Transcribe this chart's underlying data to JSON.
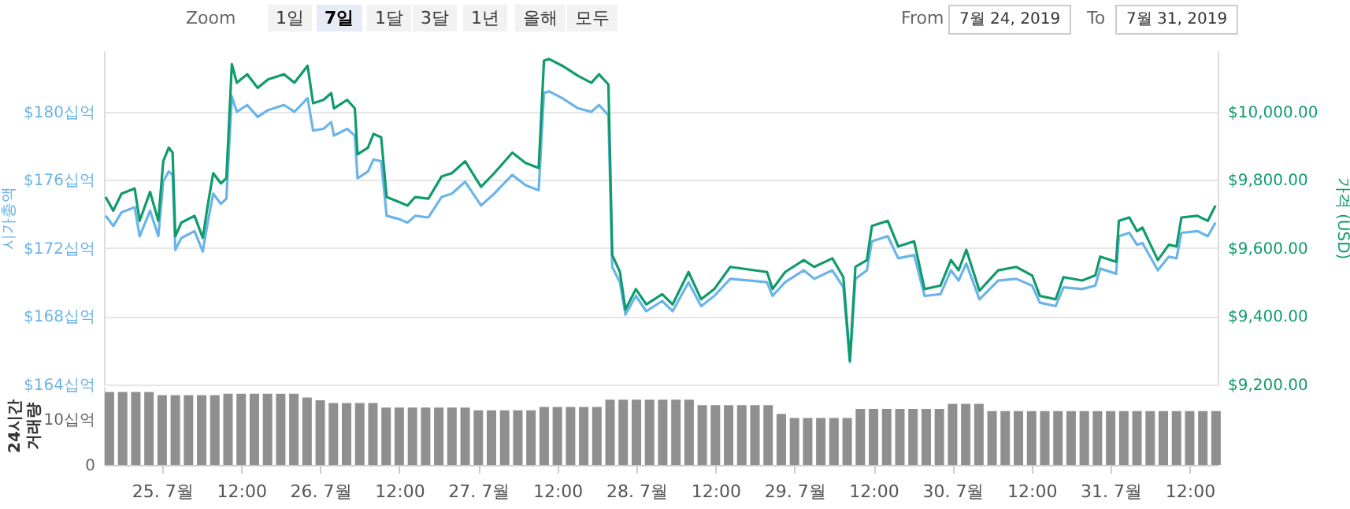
{
  "chart_data": [
    {
      "type": "line",
      "xlim": [
        "2019-07-24T15:10",
        "2019-07-31T16:15"
      ],
      "ylim": [
        164,
        183.6
      ],
      "yticks": [
        {
          "value": 164,
          "label": "$164십억"
        },
        {
          "value": 168,
          "label": "$168십억"
        },
        {
          "value": 172,
          "label": "$172십억"
        },
        {
          "value": 176,
          "label": "$176십억"
        },
        {
          "value": 180,
          "label": "$180십억"
        }
      ],
      "y2lim": [
        9200,
        10180
      ],
      "y2ticks": [
        {
          "value": 9200,
          "label": "$9,200.00"
        },
        {
          "value": 9400,
          "label": "$9,400.00"
        },
        {
          "value": 9600,
          "label": "$9,600.00"
        },
        {
          "value": 9800,
          "label": "$9,800.00"
        },
        {
          "value": 10000,
          "label": "$10,000.00"
        }
      ],
      "ylabel": "시가총액",
      "y2label": "가격 (USD)",
      "grid": "y",
      "tick_labels": "y",
      "annotations": [
        "Zoom",
        "1일",
        "7일",
        "1달",
        "3달",
        "1년",
        "올해",
        "모두",
        "From",
        "7월 24, 2019",
        "To",
        "7월 31, 2019"
      ],
      "x": [
        "2019-07-24T15:25",
        "2019-07-24T16:35",
        "2019-07-24T17:50",
        "2019-07-24T19:50",
        "2019-07-24T20:35",
        "2019-07-24T22:10",
        "2019-07-24T23:25",
        "2019-07-25T00:10",
        "2019-07-25T01:00",
        "2019-07-25T01:35",
        "2019-07-25T02:00",
        "2019-07-25T02:55",
        "2019-07-25T04:55",
        "2019-07-25T06:10",
        "2019-07-25T06:55",
        "2019-07-25T07:45",
        "2019-07-25T08:55",
        "2019-07-25T09:45",
        "2019-07-25T10:35",
        "2019-07-25T11:20",
        "2019-07-25T12:55",
        "2019-07-25T14:30",
        "2019-07-25T16:05",
        "2019-07-25T18:30",
        "2019-07-25T20:05",
        "2019-07-25T22:05",
        "2019-07-25T22:55",
        "2019-07-26T00:30",
        "2019-07-26T01:40",
        "2019-07-26T02:05",
        "2019-07-26T04:05",
        "2019-07-26T05:15",
        "2019-07-26T05:40",
        "2019-07-26T07:15",
        "2019-07-26T08:05",
        "2019-07-26T09:15",
        "2019-07-26T10:05",
        "2019-07-26T12:00",
        "2019-07-26T13:15",
        "2019-07-26T14:25",
        "2019-07-26T16:25",
        "2019-07-26T18:25",
        "2019-07-26T20:00",
        "2019-07-26T22:00",
        "2019-07-27T00:25",
        "2019-07-27T02:25",
        "2019-07-27T05:10",
        "2019-07-27T07:10",
        "2019-07-27T09:10",
        "2019-07-27T09:58",
        "2019-07-27T10:45",
        "2019-07-27T12:45",
        "2019-07-27T15:10",
        "2019-07-27T17:10",
        "2019-07-27T18:20",
        "2019-07-27T19:45",
        "2019-07-27T20:20",
        "2019-07-27T21:30",
        "2019-07-27T22:20",
        "2019-07-27T23:55",
        "2019-07-28T01:30",
        "2019-07-28T03:55",
        "2019-07-28T05:30",
        "2019-07-28T07:55",
        "2019-07-28T09:50",
        "2019-07-28T11:50",
        "2019-07-28T14:15",
        "2019-07-28T19:50",
        "2019-07-28T20:40",
        "2019-07-28T22:35",
        "2019-07-29T01:25",
        "2019-07-29T03:00",
        "2019-07-29T05:45",
        "2019-07-29T07:25",
        "2019-07-29T08:25",
        "2019-07-29T09:15",
        "2019-07-29T11:00",
        "2019-07-29T11:45",
        "2019-07-29T14:10",
        "2019-07-29T15:45",
        "2019-07-29T18:10",
        "2019-07-29T19:45",
        "2019-07-29T22:10",
        "2019-07-29T23:45",
        "2019-07-30T00:55",
        "2019-07-30T02:05",
        "2019-07-30T04:05",
        "2019-07-30T06:55",
        "2019-07-30T09:40",
        "2019-07-30T12:05",
        "2019-07-30T13:15",
        "2019-07-30T15:40",
        "2019-07-30T16:50",
        "2019-07-30T19:40",
        "2019-07-30T21:40",
        "2019-07-30T22:25",
        "2019-07-31T00:50",
        "2019-07-31T01:15",
        "2019-07-31T02:50",
        "2019-07-31T04:00",
        "2019-07-31T04:50",
        "2019-07-31T07:10",
        "2019-07-31T08:50",
        "2019-07-31T10:00",
        "2019-07-31T10:45",
        "2019-07-31T13:10",
        "2019-07-31T14:45",
        "2019-07-31T15:55"
      ],
      "series": [
        {
          "color": "#6ab4ea",
          "values": [
            173.9,
            173.3,
            174.1,
            174.4,
            172.7,
            174.2,
            172.7,
            175.9,
            176.5,
            176.3,
            171.9,
            172.6,
            173.0,
            171.8,
            173.5,
            175.2,
            174.6,
            174.9,
            180.9,
            180.0,
            180.4,
            179.7,
            180.1,
            180.4,
            180.0,
            180.8,
            178.9,
            179.0,
            179.4,
            178.6,
            179.0,
            178.6,
            176.1,
            176.5,
            177.2,
            177.1,
            173.9,
            173.7,
            173.5,
            173.9,
            173.8,
            175.0,
            175.2,
            175.9,
            174.5,
            175.2,
            176.3,
            175.7,
            175.4,
            181.1,
            181.2,
            180.8,
            180.2,
            180.0,
            180.4,
            179.8,
            170.9,
            170.0,
            168.1,
            169.2,
            168.3,
            168.9,
            168.3,
            170.0,
            168.6,
            169.2,
            170.2,
            170.0,
            169.2,
            170.0,
            170.7,
            170.2,
            170.7,
            169.7,
            165.3,
            170.2,
            170.7,
            172.4,
            172.7,
            171.4,
            171.6,
            169.2,
            169.3,
            170.7,
            170.1,
            171.1,
            169.0,
            170.1,
            170.2,
            169.8,
            168.8,
            168.6,
            169.7,
            169.6,
            169.8,
            170.8,
            170.5,
            172.7,
            172.9,
            172.2,
            172.3,
            170.7,
            171.5,
            171.4,
            172.9,
            173.0,
            172.7,
            173.5
          ]
        },
        {
          "color": "#0f9b6c",
          "axis": "y2",
          "values": [
            9750,
            9710,
            9760,
            9775,
            9680,
            9765,
            9680,
            9855,
            9895,
            9880,
            9635,
            9675,
            9695,
            9630,
            9725,
            9820,
            9790,
            9805,
            10140,
            10085,
            10110,
            10070,
            10095,
            10110,
            10085,
            10135,
            10025,
            10035,
            10055,
            10010,
            10035,
            10010,
            9875,
            9895,
            9935,
            9925,
            9750,
            9735,
            9725,
            9750,
            9745,
            9810,
            9820,
            9855,
            9780,
            9820,
            9880,
            9850,
            9835,
            10150,
            10155,
            10135,
            10105,
            10085,
            10110,
            10080,
            9580,
            9530,
            9420,
            9480,
            9435,
            9465,
            9435,
            9530,
            9450,
            9480,
            9545,
            9530,
            9480,
            9530,
            9565,
            9545,
            9570,
            9515,
            9270,
            9545,
            9565,
            9665,
            9680,
            9605,
            9620,
            9480,
            9490,
            9565,
            9535,
            9595,
            9475,
            9535,
            9545,
            9520,
            9460,
            9450,
            9515,
            9505,
            9520,
            9575,
            9560,
            9680,
            9690,
            9650,
            9660,
            9565,
            9610,
            9605,
            9690,
            9695,
            9680,
            9725
          ]
        }
      ]
    },
    {
      "type": "bar",
      "xlim": [
        "2019-07-24T15:10",
        "2019-07-31T16:15"
      ],
      "ylim": [
        0,
        17.3
      ],
      "yticks": [
        0,
        {
          "value": 10,
          "label": "10십억"
        }
      ],
      "ylabel": "24시간\n거래량",
      "color": "#8f8f8f",
      "xticks": [
        {
          "value": "2019-07-25T00:00",
          "label": "25. 7월"
        },
        {
          "value": "2019-07-25T12:00",
          "label": "12:00"
        },
        {
          "value": "2019-07-26T00:00",
          "label": "26. 7월"
        },
        {
          "value": "2019-07-26T12:00",
          "label": "12:00"
        },
        {
          "value": "2019-07-27T00:00",
          "label": "27. 7월"
        },
        {
          "value": "2019-07-27T12:00",
          "label": "12:00"
        },
        {
          "value": "2019-07-28T00:00",
          "label": "28. 7월"
        },
        {
          "value": "2019-07-28T12:00",
          "label": "12:00"
        },
        {
          "value": "2019-07-29T00:00",
          "label": "29. 7월"
        },
        {
          "value": "2019-07-29T12:00",
          "label": "12:00"
        },
        {
          "value": "2019-07-30T00:00",
          "label": "30. 7월"
        },
        {
          "value": "2019-07-30T12:00",
          "label": "12:00"
        },
        {
          "value": "2019-07-31T00:00",
          "label": "31. 7월"
        },
        {
          "value": "2019-07-31T12:00",
          "label": "12:00"
        }
      ],
      "x": [
        "2019-07-24T16:00",
        "2019-07-24T18:00",
        "2019-07-24T20:00",
        "2019-07-24T22:00",
        "2019-07-25T00:00",
        "2019-07-25T02:00",
        "2019-07-25T04:00",
        "2019-07-25T06:00",
        "2019-07-25T08:00",
        "2019-07-25T10:00",
        "2019-07-25T12:00",
        "2019-07-25T14:00",
        "2019-07-25T16:00",
        "2019-07-25T18:00",
        "2019-07-25T20:00",
        "2019-07-25T22:00",
        "2019-07-26T00:00",
        "2019-07-26T02:00",
        "2019-07-26T04:00",
        "2019-07-26T06:00",
        "2019-07-26T08:00",
        "2019-07-26T10:00",
        "2019-07-26T12:00",
        "2019-07-26T14:00",
        "2019-07-26T16:00",
        "2019-07-26T18:00",
        "2019-07-26T20:00",
        "2019-07-26T22:00",
        "2019-07-27T00:00",
        "2019-07-27T02:00",
        "2019-07-27T04:00",
        "2019-07-27T06:00",
        "2019-07-27T08:00",
        "2019-07-27T10:00",
        "2019-07-27T12:00",
        "2019-07-27T14:00",
        "2019-07-27T16:00",
        "2019-07-27T18:00",
        "2019-07-27T20:00",
        "2019-07-27T22:00",
        "2019-07-28T00:00",
        "2019-07-28T02:00",
        "2019-07-28T04:00",
        "2019-07-28T06:00",
        "2019-07-28T08:00",
        "2019-07-28T10:00",
        "2019-07-28T12:00",
        "2019-07-28T14:00",
        "2019-07-28T16:00",
        "2019-07-28T18:00",
        "2019-07-28T20:00",
        "2019-07-28T22:00",
        "2019-07-29T00:00",
        "2019-07-29T02:00",
        "2019-07-29T04:00",
        "2019-07-29T06:00",
        "2019-07-29T08:00",
        "2019-07-29T10:00",
        "2019-07-29T12:00",
        "2019-07-29T14:00",
        "2019-07-29T16:00",
        "2019-07-29T18:00",
        "2019-07-29T20:00",
        "2019-07-29T22:00",
        "2019-07-30T00:00",
        "2019-07-30T02:00",
        "2019-07-30T04:00",
        "2019-07-30T06:00",
        "2019-07-30T08:00",
        "2019-07-30T10:00",
        "2019-07-30T12:00",
        "2019-07-30T14:00",
        "2019-07-30T16:00",
        "2019-07-30T18:00",
        "2019-07-30T20:00",
        "2019-07-30T22:00",
        "2019-07-31T00:00",
        "2019-07-31T02:00",
        "2019-07-31T04:00",
        "2019-07-31T06:00",
        "2019-07-31T08:00",
        "2019-07-31T10:00",
        "2019-07-31T12:00",
        "2019-07-31T14:00",
        "2019-07-31T16:00"
      ],
      "values": [
        16.0,
        16.0,
        16.0,
        16.0,
        15.3,
        15.3,
        15.3,
        15.3,
        15.3,
        15.6,
        15.6,
        15.6,
        15.6,
        15.6,
        15.6,
        14.8,
        14.2,
        13.6,
        13.6,
        13.6,
        13.6,
        12.6,
        12.6,
        12.6,
        12.6,
        12.6,
        12.6,
        12.6,
        12.0,
        12.0,
        12.0,
        12.0,
        12.0,
        12.7,
        12.7,
        12.7,
        12.7,
        12.7,
        14.3,
        14.3,
        14.3,
        14.3,
        14.3,
        14.3,
        14.3,
        13.1,
        13.1,
        13.1,
        13.1,
        13.1,
        13.1,
        11.2,
        10.3,
        10.3,
        10.3,
        10.3,
        10.3,
        12.3,
        12.3,
        12.3,
        12.3,
        12.3,
        12.3,
        12.3,
        13.4,
        13.4,
        13.4,
        11.8,
        11.8,
        11.8,
        11.8,
        11.8,
        11.8,
        11.8,
        11.8,
        11.8,
        11.8,
        11.8,
        11.8,
        11.8,
        11.8,
        11.8,
        11.8,
        11.8,
        11.8
      ]
    }
  ]
}
